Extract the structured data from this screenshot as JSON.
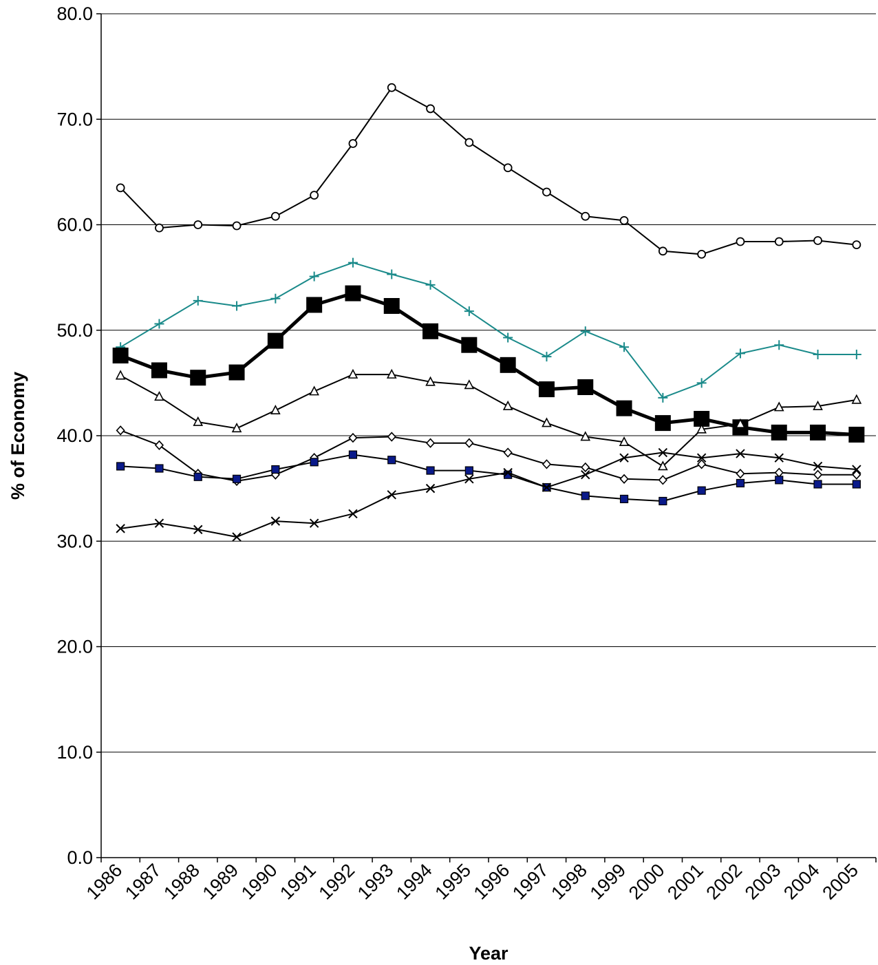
{
  "chart_data": {
    "type": "line",
    "title": "",
    "xlabel": "Year",
    "ylabel": "% of Economy",
    "categories": [
      "1986",
      "1987",
      "1988",
      "1989",
      "1990",
      "1991",
      "1992",
      "1993",
      "1994",
      "1995",
      "1996",
      "1997",
      "1998",
      "1999",
      "2000",
      "2001",
      "2002",
      "2003",
      "2004",
      "2005"
    ],
    "ylim": [
      0,
      80
    ],
    "yticks": [
      "0.0",
      "10.0",
      "20.0",
      "30.0",
      "40.0",
      "50.0",
      "60.0",
      "70.0",
      "80.0"
    ],
    "grid": true,
    "legend": "none",
    "series": [
      {
        "marker": "circle",
        "color": "#000000",
        "values": [
          63.5,
          59.7,
          60.0,
          59.9,
          60.8,
          62.8,
          67.7,
          73.0,
          71.0,
          67.8,
          65.4,
          63.1,
          60.8,
          60.4,
          57.5,
          57.2,
          58.4,
          58.4,
          58.5,
          58.1
        ]
      },
      {
        "marker": "plus",
        "color": "#1a8a8a",
        "values": [
          48.4,
          50.6,
          52.8,
          52.3,
          53.0,
          55.1,
          56.4,
          55.3,
          54.3,
          51.8,
          49.3,
          47.5,
          49.9,
          48.4,
          43.6,
          45.0,
          47.8,
          48.6,
          47.7,
          47.7
        ]
      },
      {
        "marker": "bigsquare",
        "color": "#000000",
        "values": [
          47.6,
          46.2,
          45.5,
          46.0,
          49.0,
          52.4,
          53.5,
          52.3,
          49.9,
          48.6,
          46.7,
          44.4,
          44.6,
          42.6,
          41.2,
          41.6,
          40.8,
          40.3,
          40.3,
          40.1
        ]
      },
      {
        "marker": "triangle",
        "color": "#000000",
        "values": [
          45.7,
          43.7,
          41.3,
          40.7,
          42.4,
          44.2,
          45.8,
          45.8,
          45.1,
          44.8,
          42.8,
          41.2,
          39.9,
          39.4,
          37.1,
          40.6,
          41.1,
          42.7,
          42.8,
          43.4
        ]
      },
      {
        "marker": "diamond",
        "color": "#000000",
        "values": [
          40.5,
          39.1,
          36.4,
          35.7,
          36.3,
          37.9,
          39.8,
          39.9,
          39.3,
          39.3,
          38.4,
          37.3,
          37.0,
          35.9,
          35.8,
          37.3,
          36.4,
          36.5,
          36.3,
          36.3
        ]
      },
      {
        "marker": "square",
        "color": "#000000",
        "fill": "#0a1a8a",
        "values": [
          37.1,
          36.9,
          36.1,
          35.9,
          36.8,
          37.5,
          38.2,
          37.7,
          36.7,
          36.7,
          36.3,
          35.1,
          34.3,
          34.0,
          33.8,
          34.8,
          35.5,
          35.8,
          35.4,
          35.4
        ]
      },
      {
        "marker": "x",
        "color": "#000000",
        "values": [
          31.2,
          31.7,
          31.1,
          30.4,
          31.9,
          31.7,
          32.6,
          34.4,
          35.0,
          35.9,
          36.5,
          35.1,
          36.3,
          37.9,
          38.4,
          37.9,
          38.3,
          37.9,
          37.1,
          36.8
        ]
      }
    ]
  }
}
